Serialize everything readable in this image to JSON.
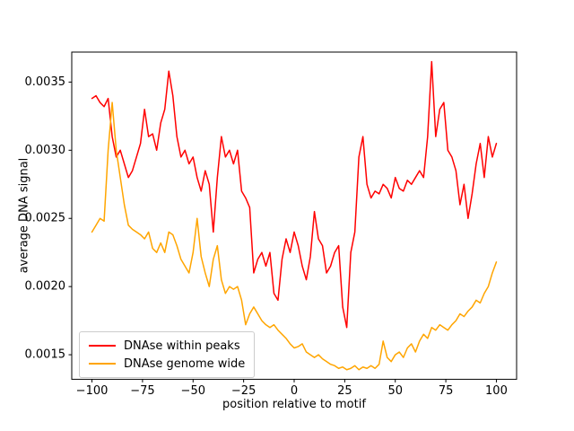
{
  "chart_data": {
    "type": "line",
    "title": "",
    "xlabel": "position relative to motif",
    "ylabel": "average DNA signal",
    "xlim": [
      -110,
      110
    ],
    "ylim": [
      0.00132,
      0.00372
    ],
    "xticks": [
      -100,
      -75,
      -50,
      -25,
      0,
      25,
      50,
      75,
      100
    ],
    "xtick_labels": [
      "−100",
      "−75",
      "−50",
      "−25",
      "0",
      "25",
      "50",
      "75",
      "100"
    ],
    "yticks": [
      0.0015,
      0.002,
      0.0025,
      0.003,
      0.0035
    ],
    "ytick_labels": [
      "0.0015",
      "0.0020",
      "0.0025",
      "0.0030",
      "0.0035"
    ],
    "grid": false,
    "legend_position": "lower left",
    "x": [
      -100,
      -98,
      -96,
      -94,
      -92,
      -90,
      -88,
      -86,
      -84,
      -82,
      -80,
      -78,
      -76,
      -74,
      -72,
      -70,
      -68,
      -66,
      -64,
      -62,
      -60,
      -58,
      -56,
      -54,
      -52,
      -50,
      -48,
      -46,
      -44,
      -42,
      -40,
      -38,
      -36,
      -34,
      -32,
      -30,
      -28,
      -26,
      -24,
      -22,
      -20,
      -18,
      -16,
      -14,
      -12,
      -10,
      -8,
      -6,
      -4,
      -2,
      0,
      2,
      4,
      6,
      8,
      10,
      12,
      14,
      16,
      18,
      20,
      22,
      24,
      26,
      28,
      30,
      32,
      34,
      36,
      38,
      40,
      42,
      44,
      46,
      48,
      50,
      52,
      54,
      56,
      58,
      60,
      62,
      64,
      66,
      68,
      70,
      72,
      74,
      76,
      78,
      80,
      82,
      84,
      86,
      88,
      90,
      92,
      94,
      96,
      98,
      100
    ],
    "series": [
      {
        "name": "DNAse within peaks",
        "color": "#ff0000",
        "values": [
          0.00338,
          0.0034,
          0.00335,
          0.00332,
          0.00338,
          0.0031,
          0.00295,
          0.003,
          0.0029,
          0.0028,
          0.00285,
          0.00295,
          0.00305,
          0.0033,
          0.0031,
          0.00312,
          0.003,
          0.0032,
          0.0033,
          0.00358,
          0.0034,
          0.0031,
          0.00295,
          0.003,
          0.0029,
          0.00295,
          0.0028,
          0.0027,
          0.00285,
          0.00275,
          0.0024,
          0.0028,
          0.0031,
          0.00295,
          0.003,
          0.0029,
          0.003,
          0.0027,
          0.00265,
          0.00258,
          0.0021,
          0.0022,
          0.00225,
          0.00215,
          0.00225,
          0.00195,
          0.0019,
          0.0022,
          0.00235,
          0.00225,
          0.0024,
          0.0023,
          0.00215,
          0.00205,
          0.00222,
          0.00255,
          0.00235,
          0.0023,
          0.0021,
          0.00215,
          0.00225,
          0.0023,
          0.00185,
          0.0017,
          0.00225,
          0.0024,
          0.00295,
          0.0031,
          0.00275,
          0.00265,
          0.0027,
          0.00268,
          0.00275,
          0.00272,
          0.00265,
          0.0028,
          0.00272,
          0.0027,
          0.00278,
          0.00275,
          0.0028,
          0.00285,
          0.0028,
          0.0031,
          0.00365,
          0.0031,
          0.0033,
          0.00335,
          0.003,
          0.00295,
          0.00285,
          0.0026,
          0.00275,
          0.0025,
          0.00268,
          0.0029,
          0.00305,
          0.0028,
          0.0031,
          0.00295,
          0.00305
        ]
      },
      {
        "name": "DNAse genome wide",
        "color": "#ffa500",
        "values": [
          0.0024,
          0.00245,
          0.0025,
          0.00248,
          0.003,
          0.00335,
          0.003,
          0.0028,
          0.0026,
          0.00245,
          0.00242,
          0.0024,
          0.00238,
          0.00235,
          0.0024,
          0.00228,
          0.00225,
          0.00232,
          0.00225,
          0.0024,
          0.00238,
          0.0023,
          0.0022,
          0.00215,
          0.0021,
          0.00225,
          0.0025,
          0.00222,
          0.0021,
          0.002,
          0.0022,
          0.0023,
          0.00205,
          0.00195,
          0.002,
          0.00198,
          0.002,
          0.0019,
          0.00172,
          0.0018,
          0.00185,
          0.0018,
          0.00175,
          0.00172,
          0.0017,
          0.00172,
          0.00168,
          0.00165,
          0.00162,
          0.00158,
          0.00155,
          0.00156,
          0.00158,
          0.00152,
          0.0015,
          0.00148,
          0.0015,
          0.00147,
          0.00145,
          0.00143,
          0.00142,
          0.0014,
          0.00141,
          0.00139,
          0.0014,
          0.00142,
          0.00139,
          0.00141,
          0.0014,
          0.00142,
          0.0014,
          0.00143,
          0.0016,
          0.00148,
          0.00145,
          0.0015,
          0.00152,
          0.00148,
          0.00155,
          0.00158,
          0.00152,
          0.0016,
          0.00165,
          0.00162,
          0.0017,
          0.00168,
          0.00172,
          0.0017,
          0.00168,
          0.00172,
          0.00175,
          0.0018,
          0.00178,
          0.00182,
          0.00185,
          0.0019,
          0.00188,
          0.00195,
          0.002,
          0.0021,
          0.00218
        ]
      }
    ]
  }
}
